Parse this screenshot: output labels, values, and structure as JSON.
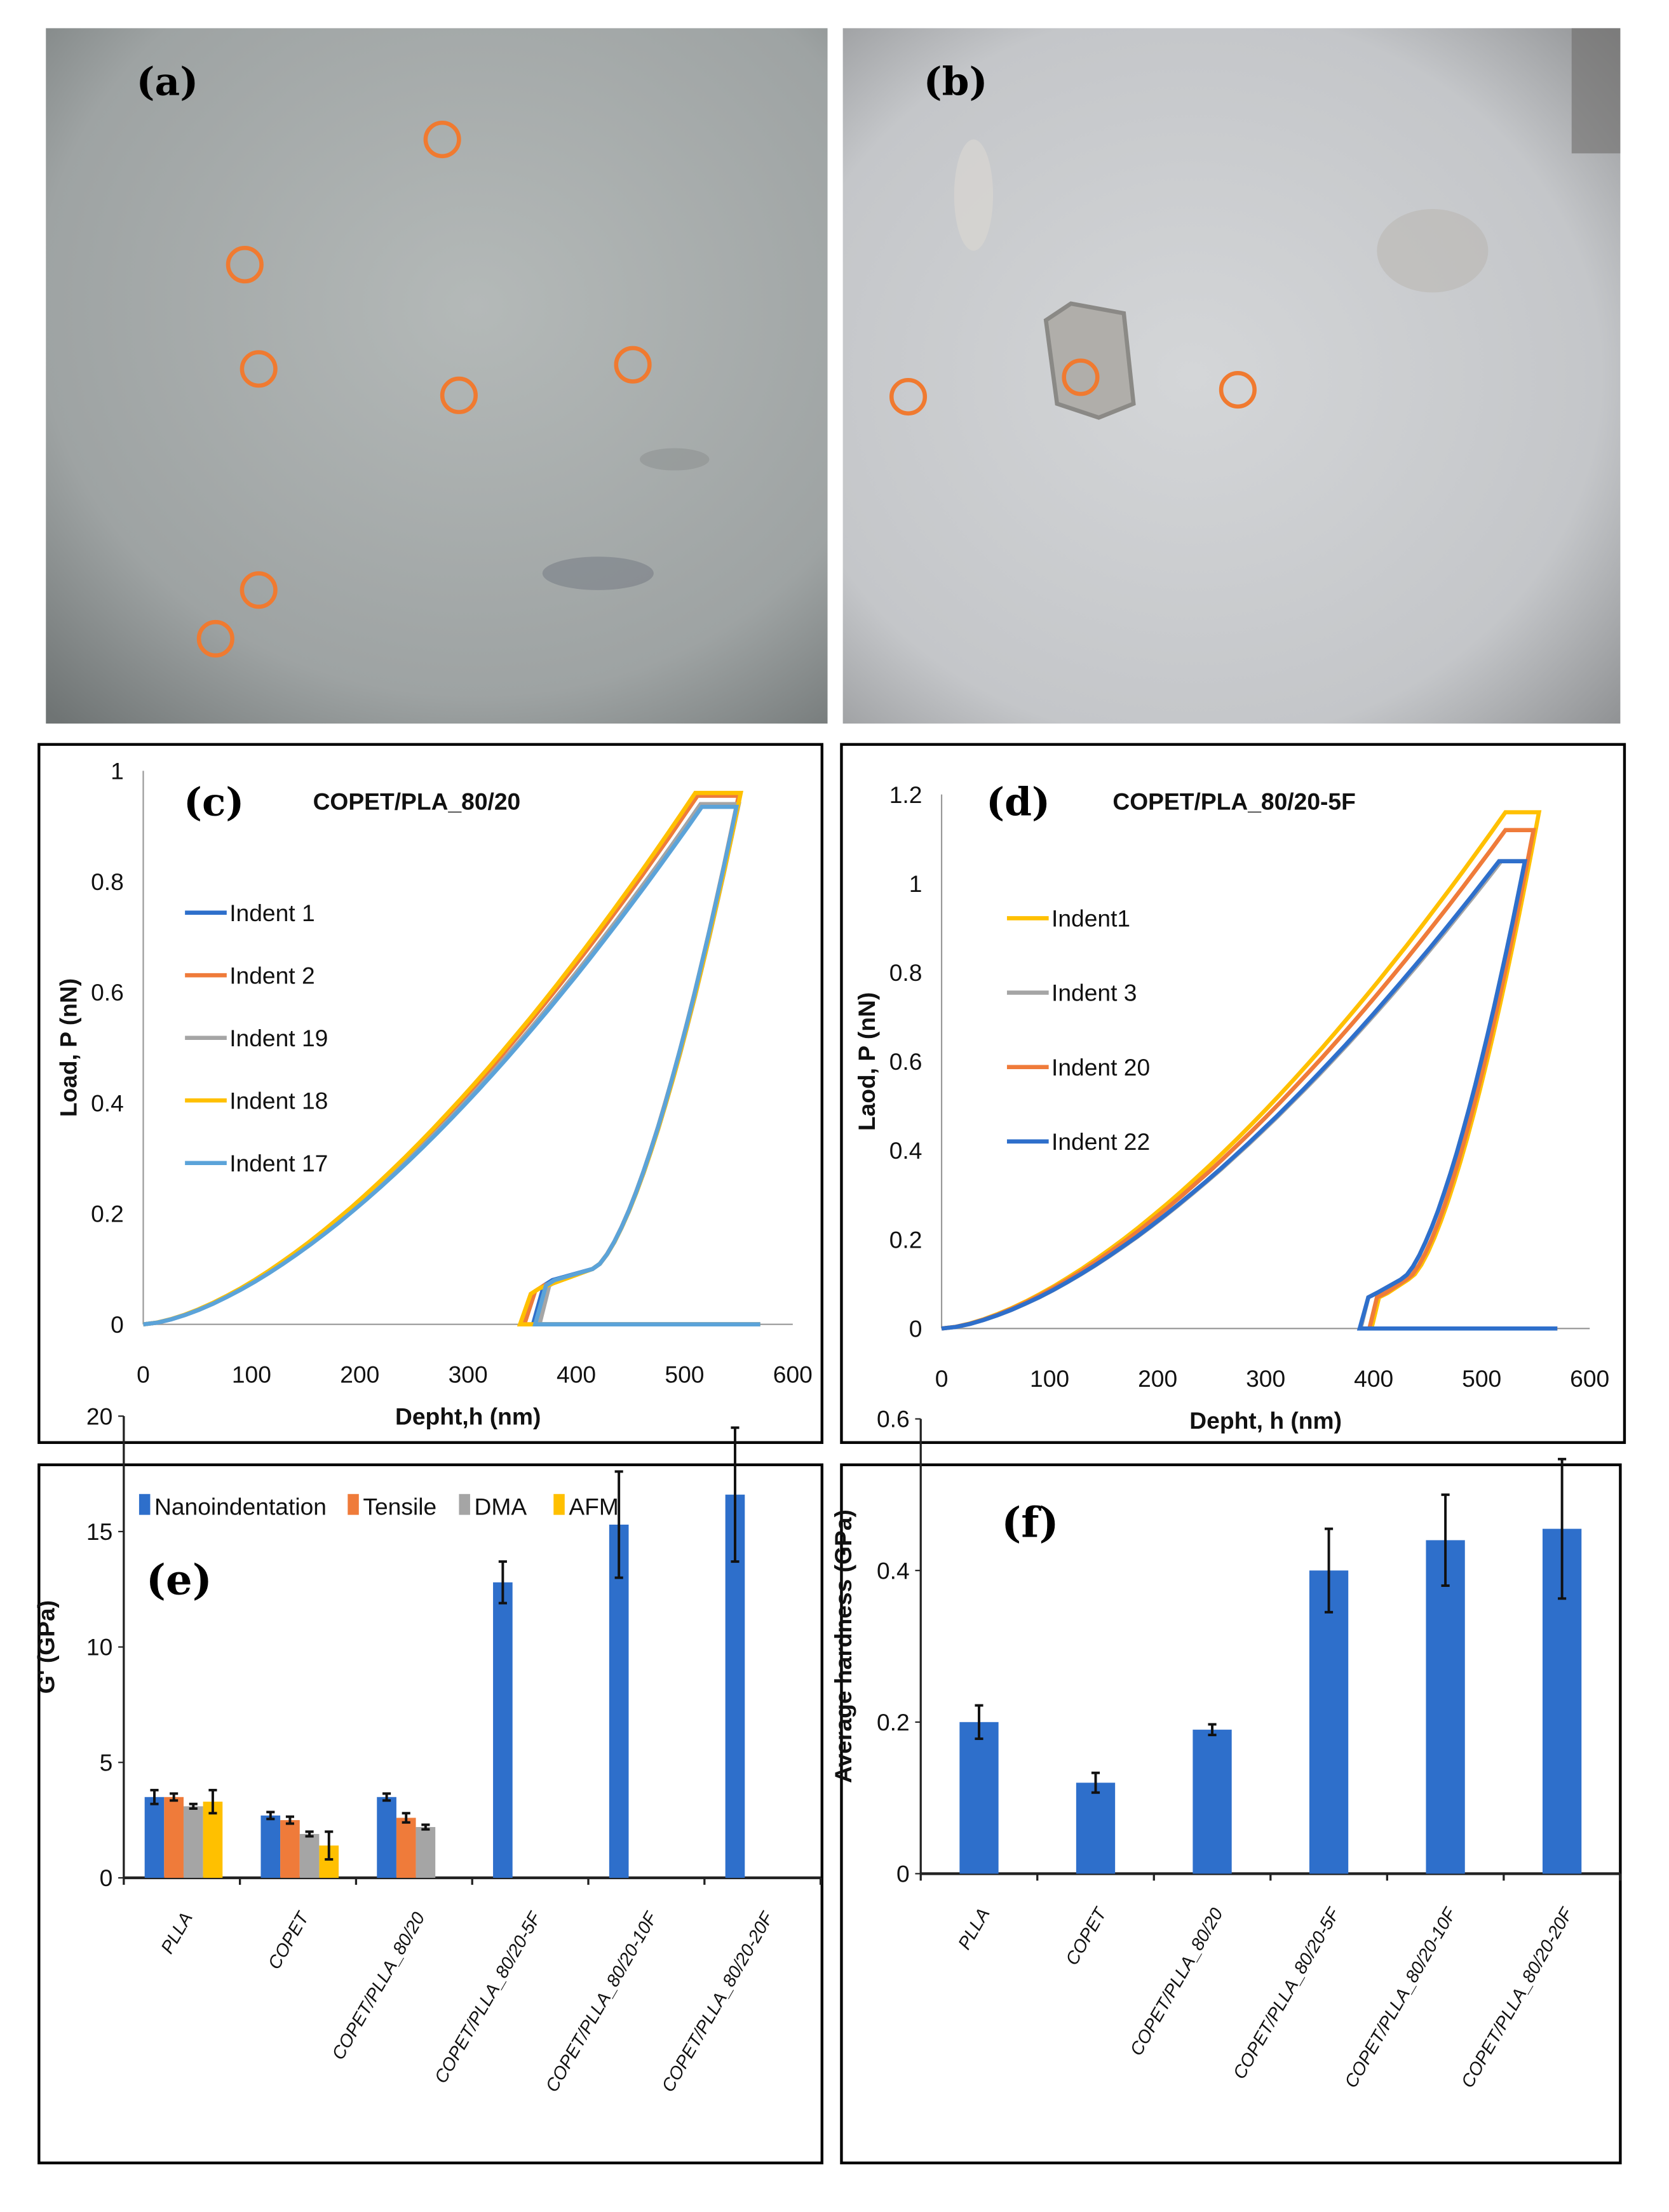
{
  "panels": {
    "a": "(a)",
    "b": "(b)",
    "c": "(c)",
    "d": "(d)",
    "e": "(e)",
    "f": "(f)"
  },
  "colors": {
    "circle": "#f07a30",
    "blue": "#2e6fcb",
    "orange": "#ef7b3a",
    "gray": "#a5a5a5",
    "yellow": "#ffc000",
    "lightblue": "#5ba3d9"
  },
  "chart_data": [
    {
      "type": "line",
      "panel": "c",
      "title": "COPET/PLA_80/20",
      "xlabel": "Depht,h (nm)",
      "ylabel": "Load, P (nN)",
      "xlim": [
        0,
        600
      ],
      "ylim": [
        0,
        1
      ],
      "xticks": [
        "0",
        "100",
        "200",
        "300",
        "400",
        "500",
        "600"
      ],
      "yticks": [
        "0",
        "0.2",
        "0.4",
        "0.6",
        "0.8",
        "1"
      ],
      "legend_position": "left",
      "series": [
        {
          "name": "Indent 1",
          "color": "#2e6fcb",
          "pmax": 0.94,
          "hmax_load": 515,
          "hmax": 550,
          "h_knee": 415,
          "p_knee": 0.1,
          "h_step": 370,
          "p_step": 0.08,
          "h_final": 360
        },
        {
          "name": "Indent 2",
          "color": "#ef7b3a",
          "pmax": 0.955,
          "hmax_load": 512,
          "hmax": 550,
          "h_knee": 415,
          "p_knee": 0.1,
          "h_step": 362,
          "p_step": 0.07,
          "h_final": 352
        },
        {
          "name": "Indent 19",
          "color": "#a5a5a5",
          "pmax": 0.94,
          "hmax_load": 515,
          "hmax": 550,
          "h_knee": 415,
          "p_knee": 0.1,
          "h_step": 375,
          "p_step": 0.08,
          "h_final": 366
        },
        {
          "name": "Indent 18",
          "color": "#ffc000",
          "pmax": 0.96,
          "hmax_load": 510,
          "hmax": 552,
          "h_knee": 415,
          "p_knee": 0.1,
          "h_step": 358,
          "p_step": 0.065,
          "h_final": 348
        },
        {
          "name": "Indent 17",
          "color": "#5ba3d9",
          "pmax": 0.935,
          "hmax_load": 516,
          "hmax": 548,
          "h_knee": 415,
          "p_knee": 0.1,
          "h_step": 372,
          "p_step": 0.08,
          "h_final": 362
        }
      ]
    },
    {
      "type": "line",
      "panel": "d",
      "title": "COPET/PLA_80/20-5F",
      "xlabel": "Depht, h (nm)",
      "ylabel": "Laod, P (nN)",
      "xlim": [
        0,
        600
      ],
      "ylim": [
        0,
        1.2
      ],
      "xticks": [
        "0",
        "100",
        "200",
        "300",
        "400",
        "500",
        "600"
      ],
      "yticks": [
        "0",
        "0.2",
        "0.4",
        "0.6",
        "0.8",
        "1",
        "1.2"
      ],
      "legend_position": "left",
      "series": [
        {
          "name": "Indent1",
          "color": "#ffc000",
          "pmax": 1.16,
          "hmax_load": 522,
          "hmax": 553,
          "h_knee": 432,
          "p_knee": 0.11,
          "h_step": 405,
          "p_step": 0.08,
          "h_final": 398
        },
        {
          "name": "Indent 3",
          "color": "#a5a5a5",
          "pmax": 1.05,
          "hmax_load": 518,
          "hmax": 540,
          "h_knee": 425,
          "p_knee": 0.11,
          "h_step": 395,
          "p_step": 0.08,
          "h_final": 388
        },
        {
          "name": "Indent 20",
          "color": "#ef7b3a",
          "pmax": 1.12,
          "hmax_load": 522,
          "hmax": 548,
          "h_knee": 430,
          "p_knee": 0.11,
          "h_step": 403,
          "p_step": 0.08,
          "h_final": 396
        },
        {
          "name": "Indent 22",
          "color": "#2e6fcb",
          "pmax": 1.05,
          "hmax_load": 516,
          "hmax": 540,
          "h_knee": 425,
          "p_knee": 0.11,
          "h_step": 395,
          "p_step": 0.08,
          "h_final": 387
        }
      ]
    },
    {
      "type": "bar",
      "panel": "e",
      "ylabel": "G' (GPa)",
      "ylim": [
        0,
        20
      ],
      "yticks": [
        "0",
        "5",
        "10",
        "15",
        "20"
      ],
      "legend_position": "top",
      "categories": [
        "PLLA",
        "COPET",
        "COPET/PLLA_80/20",
        "COPET/PLLA_80/20-5F",
        "COPET/PLLA_80/20-10F",
        "COPET/PLLA_80/20-20F"
      ],
      "series": [
        {
          "name": "Nanoindentation",
          "color": "#2e6fcb",
          "values": [
            3.5,
            2.7,
            3.5,
            12.8,
            15.3,
            16.6
          ],
          "errors": [
            0.3,
            0.15,
            0.15,
            0.9,
            2.3,
            2.9
          ]
        },
        {
          "name": "Tensile",
          "color": "#ef7b3a",
          "values": [
            3.5,
            2.5,
            2.6,
            null,
            null,
            null
          ],
          "errors": [
            0.15,
            0.15,
            0.2,
            null,
            null,
            null
          ]
        },
        {
          "name": "DMA",
          "color": "#a5a5a5",
          "values": [
            3.1,
            1.9,
            2.2,
            null,
            null,
            null
          ],
          "errors": [
            0.1,
            0.1,
            0.1,
            null,
            null,
            null
          ]
        },
        {
          "name": "AFM",
          "color": "#ffc000",
          "values": [
            3.3,
            1.4,
            null,
            null,
            null,
            null
          ],
          "errors": [
            0.5,
            0.6,
            null,
            null,
            null,
            null
          ]
        }
      ]
    },
    {
      "type": "bar",
      "panel": "f",
      "ylabel": "Average hardness (GPa)",
      "ylim": [
        0,
        0.6
      ],
      "yticks": [
        "0",
        "0.2",
        "0.4",
        "0.6"
      ],
      "categories": [
        "PLLA",
        "COPET",
        "COPET/PLLA_80/20",
        "COPET/PLLA_80/20-5F",
        "COPET/PLLA_80/20-10F",
        "COPET/PLLA_80/20-20F"
      ],
      "series": [
        {
          "name": "Average hardness",
          "color": "#2e6fcb",
          "values": [
            0.2,
            0.12,
            0.19,
            0.4,
            0.44,
            0.455
          ],
          "errors": [
            0.022,
            0.013,
            0.007,
            0.055,
            0.06,
            0.092
          ]
        }
      ]
    }
  ]
}
